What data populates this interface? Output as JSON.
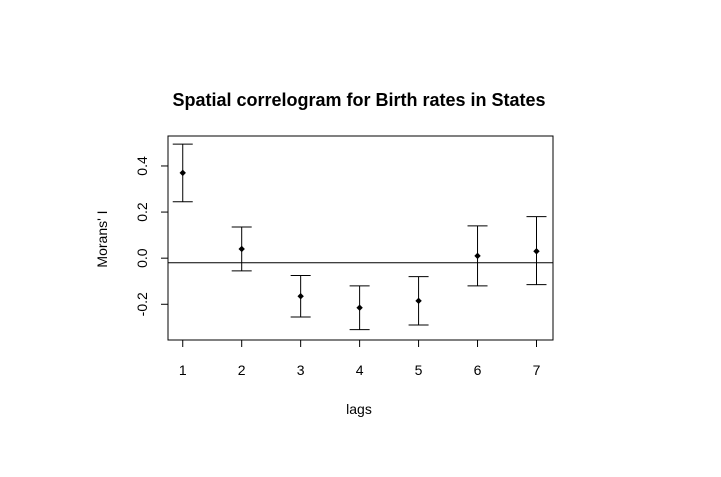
{
  "chart_data": {
    "type": "scatter",
    "title": "Spatial correlogram for Birth rates in States",
    "xlabel": "lags",
    "ylabel": "Morans' I",
    "x": [
      1,
      2,
      3,
      4,
      5,
      6,
      7
    ],
    "x_ticks": [
      "1",
      "2",
      "3",
      "4",
      "5",
      "6",
      "7"
    ],
    "y_ticks": [
      "-0.2",
      "0.0",
      "0.2",
      "0.4"
    ],
    "xlim": [
      0.75,
      7.28
    ],
    "ylim": [
      -0.355,
      0.53
    ],
    "series": [
      {
        "values": [
          0.37,
          0.04,
          -0.165,
          -0.215,
          -0.185,
          0.01,
          0.03
        ],
        "lower": [
          0.245,
          -0.055,
          -0.255,
          -0.31,
          -0.29,
          -0.12,
          -0.115
        ],
        "upper": [
          0.495,
          0.135,
          -0.075,
          -0.12,
          -0.08,
          0.14,
          0.18
        ]
      }
    ],
    "reference_line": -0.02,
    "grid": false,
    "legend": "none"
  }
}
